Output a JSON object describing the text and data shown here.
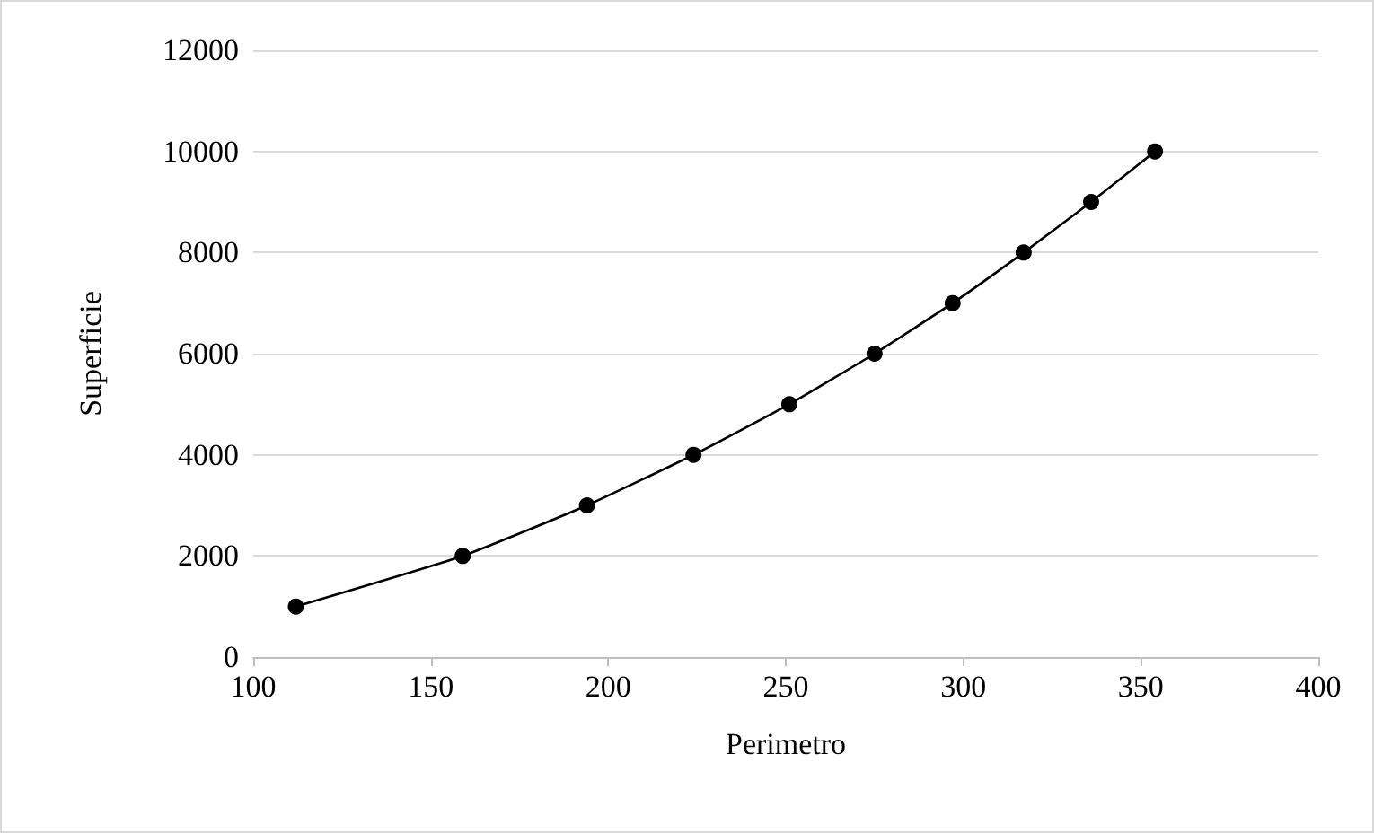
{
  "chart_data": {
    "type": "line",
    "xlabel": "Perimetro",
    "ylabel": "Superficie",
    "x": [
      112,
      159,
      194,
      224,
      251,
      275,
      297,
      317,
      336,
      354
    ],
    "series": [
      {
        "color": "#000000",
        "values": [
          1000,
          2000,
          3000,
          4000,
          5000,
          6000,
          7000,
          8000,
          9000,
          10000
        ]
      }
    ],
    "xlim": [
      100,
      400
    ],
    "xticks": [
      100,
      150,
      200,
      250,
      300,
      350,
      400
    ],
    "ylim": [
      0,
      12000
    ],
    "yticks": [
      0,
      2000,
      4000,
      6000,
      8000,
      10000,
      12000
    ],
    "grid": "y",
    "marker": "circle",
    "line_style": "solid"
  }
}
